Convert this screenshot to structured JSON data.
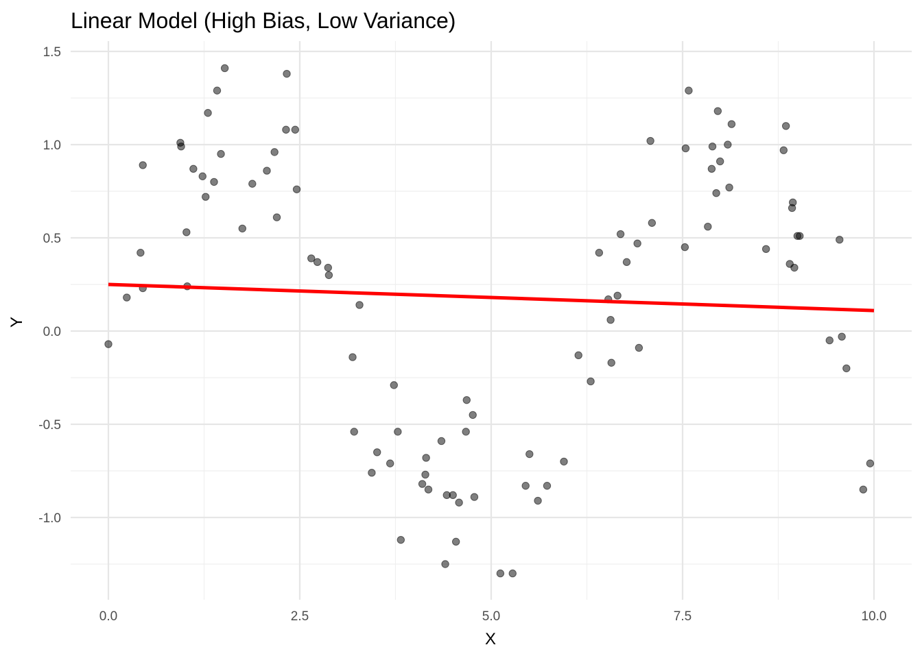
{
  "chart_data": {
    "type": "scatter",
    "title": "Linear Model (High Bias, Low Variance)",
    "xlabel": "X",
    "ylabel": "Y",
    "xlim": [
      -0.5,
      10.5
    ],
    "ylim": [
      -1.43,
      1.6
    ],
    "x_ticks": [
      0,
      2.5,
      5,
      7.5,
      10
    ],
    "x_tick_labels": [
      "0.0",
      "2.5",
      "5.0",
      "7.5",
      "10.0"
    ],
    "y_ticks": [
      -1.0,
      -0.5,
      0.0,
      0.5,
      1.0,
      1.5
    ],
    "y_tick_labels": [
      "-1.0",
      "-0.5",
      "0.0",
      "0.5",
      "1.0",
      "1.5"
    ],
    "grid": true,
    "point_color": "#000000",
    "line_color": "#ff0000",
    "fit_line": {
      "x": [
        0,
        10
      ],
      "y": [
        0.25,
        0.11
      ]
    },
    "points": [
      [
        0.0,
        -0.07
      ],
      [
        0.24,
        0.18
      ],
      [
        0.42,
        0.42
      ],
      [
        0.45,
        0.23
      ],
      [
        0.45,
        0.89
      ],
      [
        0.94,
        1.01
      ],
      [
        0.95,
        0.99
      ],
      [
        1.02,
        0.53
      ],
      [
        1.03,
        0.24
      ],
      [
        1.11,
        0.87
      ],
      [
        1.23,
        0.83
      ],
      [
        1.27,
        0.72
      ],
      [
        1.3,
        1.17
      ],
      [
        1.38,
        0.8
      ],
      [
        1.42,
        1.29
      ],
      [
        1.47,
        0.95
      ],
      [
        1.52,
        1.41
      ],
      [
        1.75,
        0.55
      ],
      [
        1.88,
        0.79
      ],
      [
        2.07,
        0.86
      ],
      [
        2.17,
        0.96
      ],
      [
        2.2,
        0.61
      ],
      [
        2.32,
        1.08
      ],
      [
        2.33,
        1.38
      ],
      [
        2.44,
        1.08
      ],
      [
        2.46,
        0.76
      ],
      [
        2.65,
        0.39
      ],
      [
        2.73,
        0.37
      ],
      [
        2.87,
        0.34
      ],
      [
        2.88,
        0.3
      ],
      [
        3.19,
        -0.14
      ],
      [
        3.21,
        -0.54
      ],
      [
        3.28,
        0.14
      ],
      [
        3.44,
        -0.76
      ],
      [
        3.51,
        -0.65
      ],
      [
        3.68,
        -0.71
      ],
      [
        3.73,
        -0.29
      ],
      [
        3.78,
        -0.54
      ],
      [
        3.82,
        -1.12
      ],
      [
        4.1,
        -0.82
      ],
      [
        4.14,
        -0.77
      ],
      [
        4.15,
        -0.68
      ],
      [
        4.18,
        -0.85
      ],
      [
        4.35,
        -0.59
      ],
      [
        4.4,
        -1.25
      ],
      [
        4.42,
        -0.88
      ],
      [
        4.5,
        -0.88
      ],
      [
        4.54,
        -1.13
      ],
      [
        4.58,
        -0.92
      ],
      [
        4.67,
        -0.54
      ],
      [
        4.68,
        -0.37
      ],
      [
        4.76,
        -0.45
      ],
      [
        4.78,
        -0.89
      ],
      [
        5.12,
        -1.3
      ],
      [
        5.28,
        -1.3
      ],
      [
        5.45,
        -0.83
      ],
      [
        5.5,
        -0.66
      ],
      [
        5.61,
        -0.91
      ],
      [
        5.73,
        -0.83
      ],
      [
        5.95,
        -0.7
      ],
      [
        6.14,
        -0.13
      ],
      [
        6.3,
        -0.27
      ],
      [
        6.41,
        0.42
      ],
      [
        6.53,
        0.17
      ],
      [
        6.56,
        0.06
      ],
      [
        6.57,
        -0.17
      ],
      [
        6.65,
        0.19
      ],
      [
        6.69,
        0.52
      ],
      [
        6.77,
        0.37
      ],
      [
        6.91,
        0.47
      ],
      [
        6.93,
        -0.09
      ],
      [
        7.08,
        1.02
      ],
      [
        7.1,
        0.58
      ],
      [
        7.53,
        0.45
      ],
      [
        7.54,
        0.98
      ],
      [
        7.58,
        1.29
      ],
      [
        7.83,
        0.56
      ],
      [
        7.88,
        0.87
      ],
      [
        7.89,
        0.99
      ],
      [
        7.94,
        0.74
      ],
      [
        7.96,
        1.18
      ],
      [
        7.99,
        0.91
      ],
      [
        8.09,
        1.0
      ],
      [
        8.11,
        0.77
      ],
      [
        8.14,
        1.11
      ],
      [
        8.59,
        0.44
      ],
      [
        8.82,
        0.97
      ],
      [
        8.85,
        1.1
      ],
      [
        8.9,
        0.36
      ],
      [
        8.93,
        0.66
      ],
      [
        8.94,
        0.69
      ],
      [
        8.96,
        0.34
      ],
      [
        9.0,
        0.51
      ],
      [
        9.03,
        0.51
      ],
      [
        9.42,
        -0.05
      ],
      [
        9.55,
        0.49
      ],
      [
        9.58,
        -0.03
      ],
      [
        9.64,
        -0.2
      ],
      [
        9.86,
        -0.85
      ],
      [
        9.95,
        -0.71
      ]
    ]
  }
}
